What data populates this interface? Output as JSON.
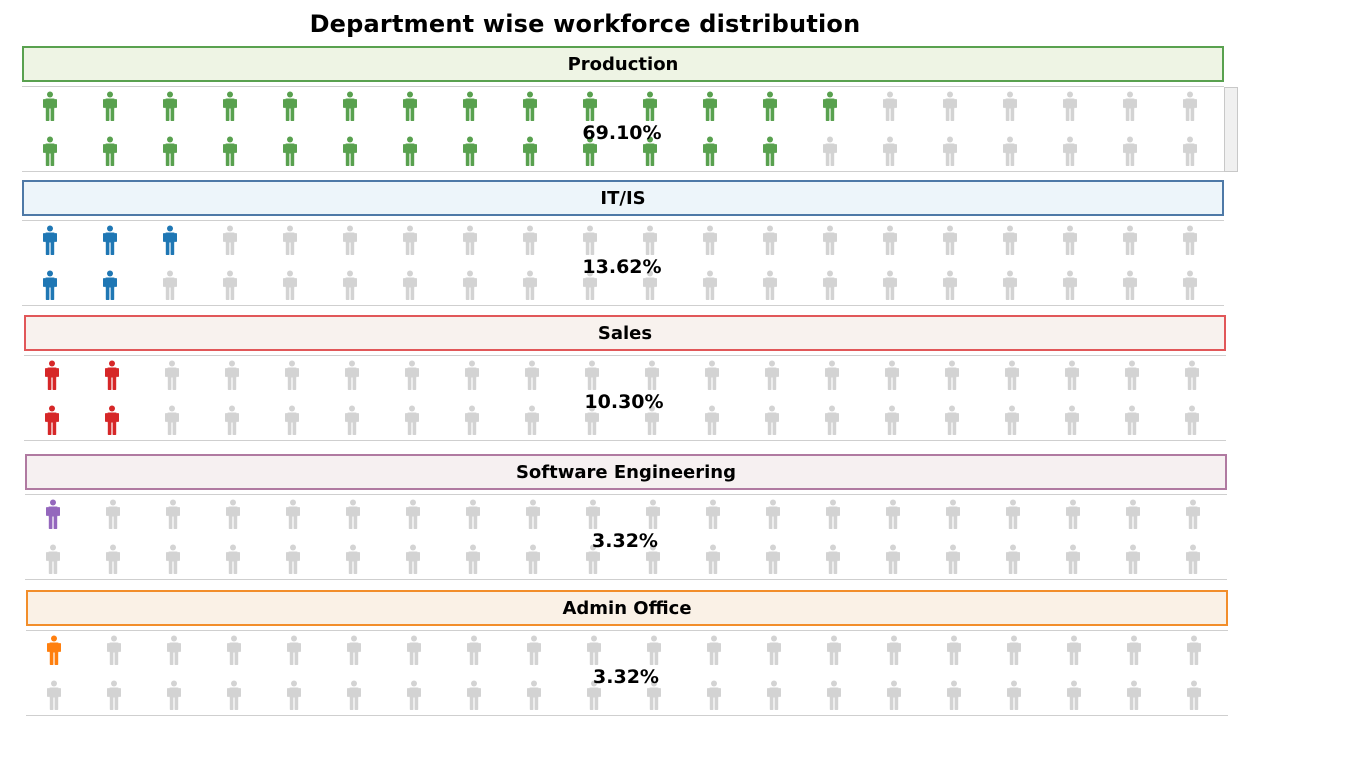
{
  "title": "Department wise workforce distribution",
  "inactive_color": "#d3d3d3",
  "chart_data": {
    "type": "pictograph",
    "title": "Department wise workforce distribution",
    "icon": "person-icon",
    "icons_per_department": 40,
    "unit": "%",
    "categories": [
      "Production",
      "IT/IS",
      "Sales",
      "Software Engineering",
      "Admin Office"
    ],
    "values": [
      69.1,
      13.62,
      10.3,
      3.32,
      3.32
    ],
    "series": [
      {
        "name": "Production",
        "value": 69.1,
        "label": "69.10%",
        "filled_icons": 27,
        "color": "#59a14f",
        "header_fill": "#eef4e4",
        "header_border": "#59a14f"
      },
      {
        "name": "IT/IS",
        "value": 13.62,
        "label": "13.62%",
        "filled_icons": 5,
        "color": "#1f77b4",
        "header_fill": "#edf5fa",
        "header_border": "#4e79a7"
      },
      {
        "name": "Sales",
        "value": 10.3,
        "label": "10.30%",
        "filled_icons": 4,
        "color": "#d62728",
        "header_fill": "#f8f2ee",
        "header_border": "#e15759"
      },
      {
        "name": "Software Engineering",
        "value": 3.32,
        "label": "3.32%",
        "filled_icons": 1,
        "color": "#9467bd",
        "header_fill": "#f6f0f1",
        "header_border": "#b07aa1"
      },
      {
        "name": "Admin Office",
        "value": 3.32,
        "label": "3.32%",
        "filled_icons": 1,
        "color": "#ff7f0e",
        "header_fill": "#faf1e6",
        "header_border": "#f28e2b"
      }
    ]
  }
}
